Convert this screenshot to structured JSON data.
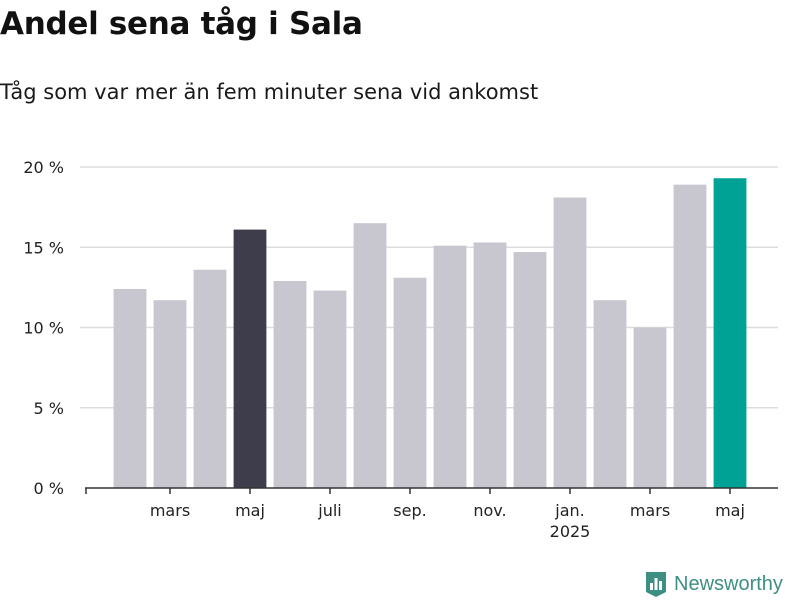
{
  "title": "Andel sena tåg i Sala",
  "subtitle": "Tåg som var mer än fem minuter sena vid ankomst",
  "brand": {
    "name": "Newsworthy",
    "icon": "newsworthy-logo-icon",
    "color": "#3d8f84"
  },
  "colors": {
    "default": "#c8c7d0",
    "highlight_dark": "#3e3d4b",
    "highlight_accent": "#00a295",
    "grid": "#dddddd",
    "axis": "#333333"
  },
  "chart_data": {
    "type": "bar",
    "title": "Andel sena tåg i Sala",
    "subtitle": "Tåg som var mer än fem minuter sena vid ankomst",
    "xlabel": "",
    "ylabel": "",
    "ylim": [
      0,
      20
    ],
    "y_ticks": [
      {
        "value": 0,
        "label": "0 %"
      },
      {
        "value": 5,
        "label": "5 %"
      },
      {
        "value": 10,
        "label": "10 %"
      },
      {
        "value": 15,
        "label": "15 %"
      },
      {
        "value": 20,
        "label": "20 %"
      }
    ],
    "grid": true,
    "legend": "none",
    "categories": [
      "2024-02",
      "2024-03",
      "2024-04",
      "2024-05",
      "2024-06",
      "2024-07",
      "2024-08",
      "2024-09",
      "2024-10",
      "2024-11",
      "2024-12",
      "2025-01",
      "2025-02",
      "2025-03",
      "2025-04",
      "2025-05"
    ],
    "values": [
      12.4,
      11.7,
      13.6,
      16.1,
      12.9,
      12.3,
      16.5,
      13.1,
      15.1,
      15.3,
      14.7,
      18.1,
      11.7,
      10.0,
      18.9,
      19.3
    ],
    "highlight": {
      "2024-05": "dark",
      "2025-05": "accent"
    },
    "x_tick_labels": [
      {
        "category": "2024-03",
        "label": "mars"
      },
      {
        "category": "2024-05",
        "label": "maj"
      },
      {
        "category": "2024-07",
        "label": "juli"
      },
      {
        "category": "2024-09",
        "label": "sep."
      },
      {
        "category": "2024-11",
        "label": "nov."
      },
      {
        "category": "2025-01",
        "label": "jan.",
        "sublabel": "2025"
      },
      {
        "category": "2025-03",
        "label": "mars"
      },
      {
        "category": "2025-05",
        "label": "maj"
      }
    ]
  }
}
